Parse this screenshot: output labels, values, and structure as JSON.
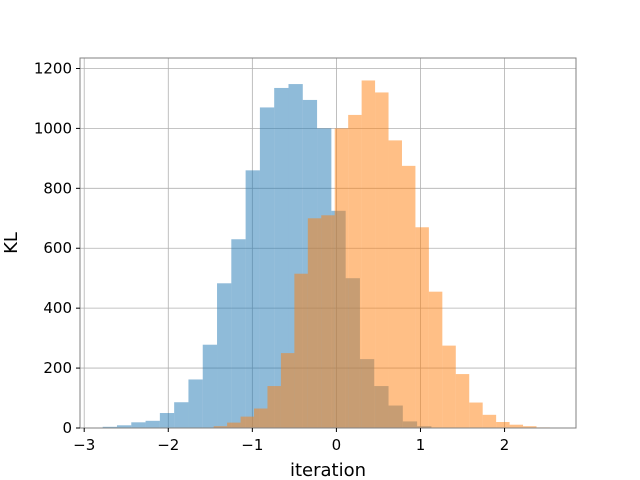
{
  "chart_data": {
    "type": "bar",
    "subtype": "overlapping-histogram",
    "xlabel": "iteration",
    "ylabel": "KL",
    "xlim": [
      -3.05,
      2.85
    ],
    "ylim": [
      0,
      1235
    ],
    "xticks": [
      -3,
      -2,
      -1,
      0,
      1,
      2
    ],
    "xtick_labels": [
      "−3",
      "−2",
      "−1",
      "0",
      "1",
      "2"
    ],
    "yticks": [
      0,
      200,
      400,
      600,
      800,
      1000,
      1200
    ],
    "ytick_labels": [
      "0",
      "200",
      "400",
      "600",
      "800",
      "1000",
      "1200"
    ],
    "grid": true,
    "legend": "none",
    "series": [
      {
        "color": "#1f77b4",
        "alpha": 0.5,
        "bin_edges": [
          -2.78,
          -2.61,
          -2.44,
          -2.27,
          -2.1,
          -1.93,
          -1.76,
          -1.59,
          -1.42,
          -1.25,
          -1.08,
          -0.91,
          -0.74,
          -0.57,
          -0.4,
          -0.23,
          -0.06,
          0.11,
          0.28,
          0.45,
          0.62,
          0.79,
          0.96,
          1.13
        ],
        "values": [
          4,
          9,
          19,
          24,
          50,
          86,
          162,
          278,
          483,
          630,
          860,
          1070,
          1135,
          1148,
          1095,
          1000,
          725,
          500,
          230,
          140,
          75,
          22,
          6
        ]
      },
      {
        "color": "#ff7f0e",
        "alpha": 0.5,
        "bin_edges": [
          -1.46,
          -1.3,
          -1.14,
          -0.98,
          -0.82,
          -0.66,
          -0.5,
          -0.34,
          -0.18,
          -0.02,
          0.14,
          0.3,
          0.46,
          0.62,
          0.78,
          0.94,
          1.1,
          1.26,
          1.42,
          1.58,
          1.74,
          1.9,
          2.06,
          2.22,
          2.38,
          2.54
        ],
        "values": [
          6,
          18,
          38,
          65,
          140,
          250,
          515,
          700,
          710,
          1000,
          1045,
          1160,
          1120,
          960,
          875,
          670,
          455,
          275,
          180,
          85,
          44,
          20,
          11,
          6,
          2
        ]
      }
    ]
  }
}
